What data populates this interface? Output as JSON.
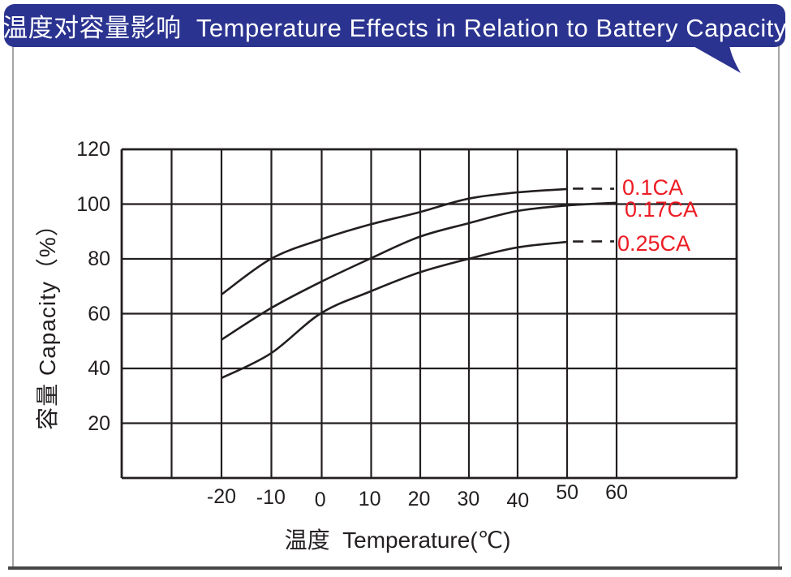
{
  "header": {
    "title": "温度对容量影响  Temperature Effects in Relation to Battery Capacity",
    "bg_color": "#2b3390",
    "text_color": "#ffffff"
  },
  "chart_data": {
    "type": "line",
    "title": "温度对容量影响 Temperature Effects in Relation to Battery Capacity",
    "xlabel": "温度  Temperature(℃)",
    "ylabel": "容量  Capacity（%）",
    "x_ticks": [
      "-20",
      "-10",
      "0",
      "10",
      "20",
      "30",
      "40",
      "50",
      "60"
    ],
    "x_tick_values": [
      -20,
      -10,
      0,
      10,
      20,
      30,
      40,
      50,
      60
    ],
    "y_ticks": [
      "120",
      "100",
      "80",
      "60",
      "40",
      "20"
    ],
    "y_tick_values": [
      120,
      100,
      80,
      60,
      40,
      20
    ],
    "ylim": [
      0,
      120
    ],
    "grid": true,
    "line_color": "#231f20",
    "label_color": "#ed1c24",
    "legend_position": "right-inline",
    "series": [
      {
        "name": "0.1CA",
        "x": [
          -20,
          -10,
          0,
          10,
          20,
          30,
          40,
          50
        ],
        "values": [
          67,
          80,
          87,
          92.5,
          97,
          102,
          104.3,
          105.5
        ],
        "dashed_extension": {
          "to_x": 60,
          "value": 105.6
        }
      },
      {
        "name": "0.17CA",
        "x": [
          -20,
          -10,
          0,
          10,
          20,
          30,
          40,
          50,
          60
        ],
        "values": [
          50.5,
          62,
          71.5,
          80,
          88,
          93,
          97.5,
          99.5,
          100.5
        ],
        "dashed_extension": null
      },
      {
        "name": "0.25CA",
        "x": [
          -20,
          -10,
          0,
          10,
          20,
          30,
          40,
          50
        ],
        "values": [
          36.5,
          45.5,
          60,
          68,
          75,
          80,
          84.2,
          86.2
        ],
        "dashed_extension": {
          "to_x": 60,
          "value": 86.4
        }
      }
    ]
  }
}
